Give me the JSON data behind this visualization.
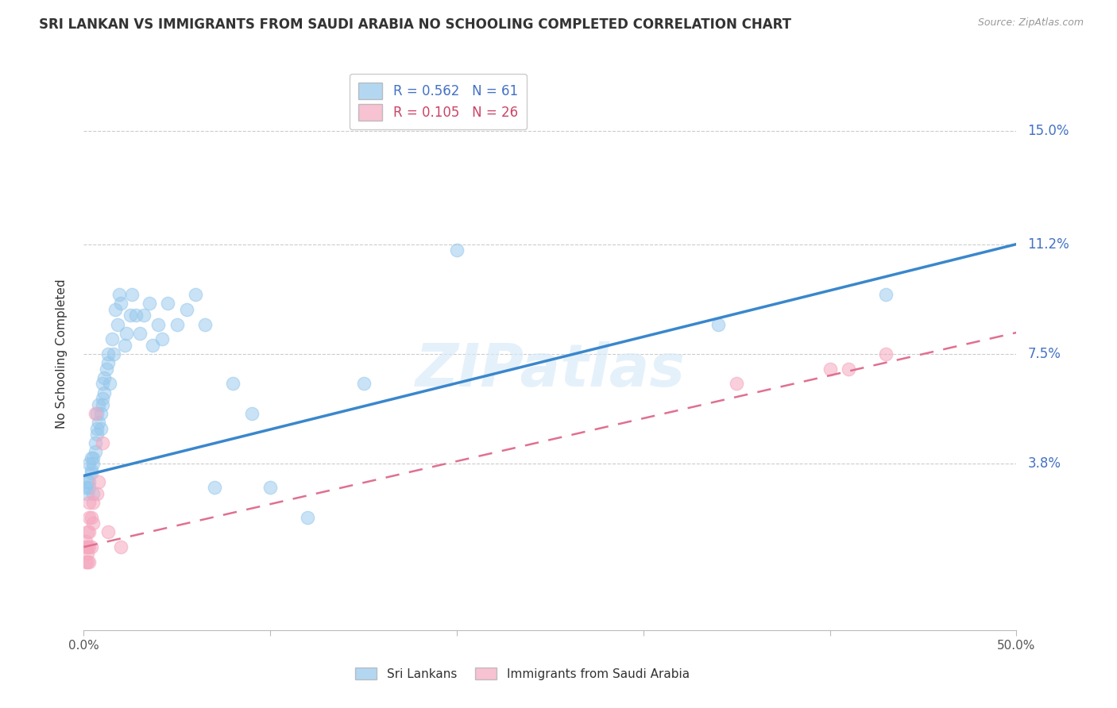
{
  "title": "SRI LANKAN VS IMMIGRANTS FROM SAUDI ARABIA NO SCHOOLING COMPLETED CORRELATION CHART",
  "source": "Source: ZipAtlas.com",
  "ylabel": "No Schooling Completed",
  "ytick_labels": [
    "3.8%",
    "7.5%",
    "11.2%",
    "15.0%"
  ],
  "ytick_values": [
    0.038,
    0.075,
    0.112,
    0.15
  ],
  "xmin": 0.0,
  "xmax": 0.5,
  "ymin": -0.018,
  "ymax": 0.168,
  "blue_color": "#94C7EC",
  "pink_color": "#F5A8BF",
  "trendline_blue_color": "#3A87CC",
  "trendline_pink_color": "#E07090",
  "watermark": "ZIPatlas",
  "sri_lankan_x": [
    0.001,
    0.002,
    0.002,
    0.003,
    0.003,
    0.003,
    0.004,
    0.004,
    0.004,
    0.005,
    0.005,
    0.005,
    0.006,
    0.006,
    0.007,
    0.007,
    0.007,
    0.008,
    0.008,
    0.009,
    0.009,
    0.01,
    0.01,
    0.01,
    0.011,
    0.011,
    0.012,
    0.013,
    0.013,
    0.014,
    0.015,
    0.016,
    0.017,
    0.018,
    0.019,
    0.02,
    0.022,
    0.023,
    0.025,
    0.026,
    0.028,
    0.03,
    0.032,
    0.035,
    0.037,
    0.04,
    0.042,
    0.045,
    0.05,
    0.055,
    0.06,
    0.065,
    0.07,
    0.08,
    0.09,
    0.1,
    0.12,
    0.15,
    0.2,
    0.34,
    0.43
  ],
  "sri_lankan_y": [
    0.03,
    0.032,
    0.028,
    0.032,
    0.038,
    0.03,
    0.035,
    0.04,
    0.036,
    0.04,
    0.038,
    0.028,
    0.042,
    0.045,
    0.05,
    0.055,
    0.048,
    0.052,
    0.058,
    0.05,
    0.055,
    0.058,
    0.06,
    0.065,
    0.062,
    0.067,
    0.07,
    0.072,
    0.075,
    0.065,
    0.08,
    0.075,
    0.09,
    0.085,
    0.095,
    0.092,
    0.078,
    0.082,
    0.088,
    0.095,
    0.088,
    0.082,
    0.088,
    0.092,
    0.078,
    0.085,
    0.08,
    0.092,
    0.085,
    0.09,
    0.095,
    0.085,
    0.03,
    0.065,
    0.055,
    0.03,
    0.02,
    0.065,
    0.11,
    0.085,
    0.095
  ],
  "saudi_x": [
    0.001,
    0.001,
    0.001,
    0.002,
    0.002,
    0.002,
    0.002,
    0.003,
    0.003,
    0.003,
    0.003,
    0.003,
    0.004,
    0.004,
    0.005,
    0.005,
    0.006,
    0.007,
    0.008,
    0.01,
    0.013,
    0.02,
    0.35,
    0.4,
    0.41,
    0.43
  ],
  "saudi_y": [
    0.005,
    0.01,
    0.012,
    0.005,
    0.008,
    0.01,
    0.015,
    0.005,
    0.01,
    0.015,
    0.02,
    0.025,
    0.01,
    0.02,
    0.018,
    0.025,
    0.055,
    0.028,
    0.032,
    0.045,
    0.015,
    0.01,
    0.065,
    0.07,
    0.07,
    0.075
  ]
}
